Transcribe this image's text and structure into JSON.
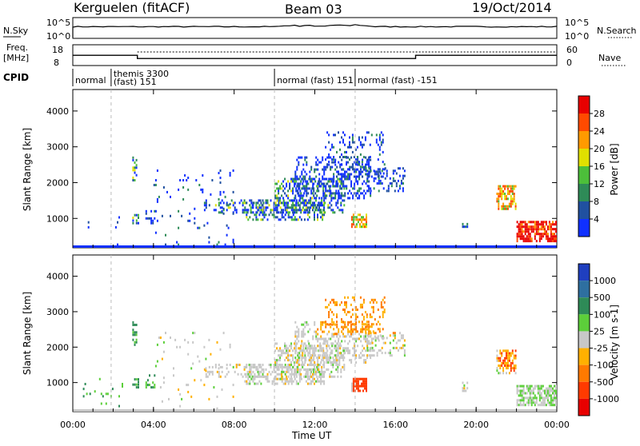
{
  "header": {
    "station": "Kerguelen (fitACF)",
    "beam": "Beam 03",
    "date": "19/Oct/2014"
  },
  "strip_labels": {
    "nsky": "N.Sky",
    "nsky_ticks": [
      "10^5",
      "10^0"
    ],
    "nsearch": "N.Search",
    "freq_top": "Freq.",
    "freq_unit": "[MHz]",
    "freq_ticks": [
      "18",
      "8"
    ],
    "nave": "Nave",
    "nave_ticks": [
      "60",
      "0"
    ],
    "cpid": "CPID"
  },
  "cpid_segments": [
    {
      "label": "normal",
      "start_hr": 0.0,
      "end_hr": 1.9
    },
    {
      "label": "themis 3300",
      "label2": "(fast) 151",
      "start_hr": 1.9,
      "end_hr": 10.0
    },
    {
      "label": "normal (fast) 151",
      "start_hr": 10.0,
      "end_hr": 14.0
    },
    {
      "label": "normal (fast) -151",
      "start_hr": 14.0,
      "end_hr": 24.0
    }
  ],
  "chart_data": [
    {
      "type": "heatmap",
      "name": "Power",
      "xlabel": "Time UT",
      "ylabel": "Slant Range [km]",
      "xlim": [
        0,
        24
      ],
      "ylim": [
        180,
        4600
      ],
      "x_ticks": [
        "00:00",
        "04:00",
        "08:00",
        "12:00",
        "16:00",
        "20:00",
        "00:00"
      ],
      "y_ticks": [
        1000,
        2000,
        3000,
        4000
      ],
      "colorbar": {
        "label": "Power [dB]",
        "ticks": [
          "4",
          "8",
          "12",
          "16",
          "20",
          "24",
          "28"
        ],
        "colors": [
          "#1030ff",
          "#2050a0",
          "#2e8b57",
          "#4cbf3a",
          "#e0e000",
          "#ff9a00",
          "#ff4a00",
          "#e80000"
        ]
      },
      "freq_mhz": [
        [
          0,
          13.5
        ],
        [
          3.2,
          13.5
        ],
        [
          3.2,
          11.0
        ],
        [
          17.0,
          11.0
        ],
        [
          17.0,
          13.5
        ],
        [
          24,
          13.5
        ]
      ]
    },
    {
      "type": "heatmap",
      "name": "Velocity",
      "xlabel": "Time UT",
      "ylabel": "Slant Range [km]",
      "xlim": [
        0,
        24
      ],
      "ylim": [
        180,
        4600
      ],
      "x_ticks": [
        "00:00",
        "04:00",
        "08:00",
        "12:00",
        "16:00",
        "20:00",
        "00:00"
      ],
      "y_ticks": [
        1000,
        2000,
        3000,
        4000
      ],
      "colorbar": {
        "label": "Velocity [m s-1]",
        "ticks": [
          "1000",
          "500",
          "100",
          "25",
          "-25",
          "-100",
          "-500",
          "-1000"
        ],
        "colors": [
          "#1f3fbf",
          "#2e6fa0",
          "#2e8b57",
          "#5ccf3a",
          "#c8c8c8",
          "#ffb000",
          "#ff7a00",
          "#ff3a00",
          "#e80000"
        ]
      }
    }
  ],
  "time_axis_label": "Time UT"
}
